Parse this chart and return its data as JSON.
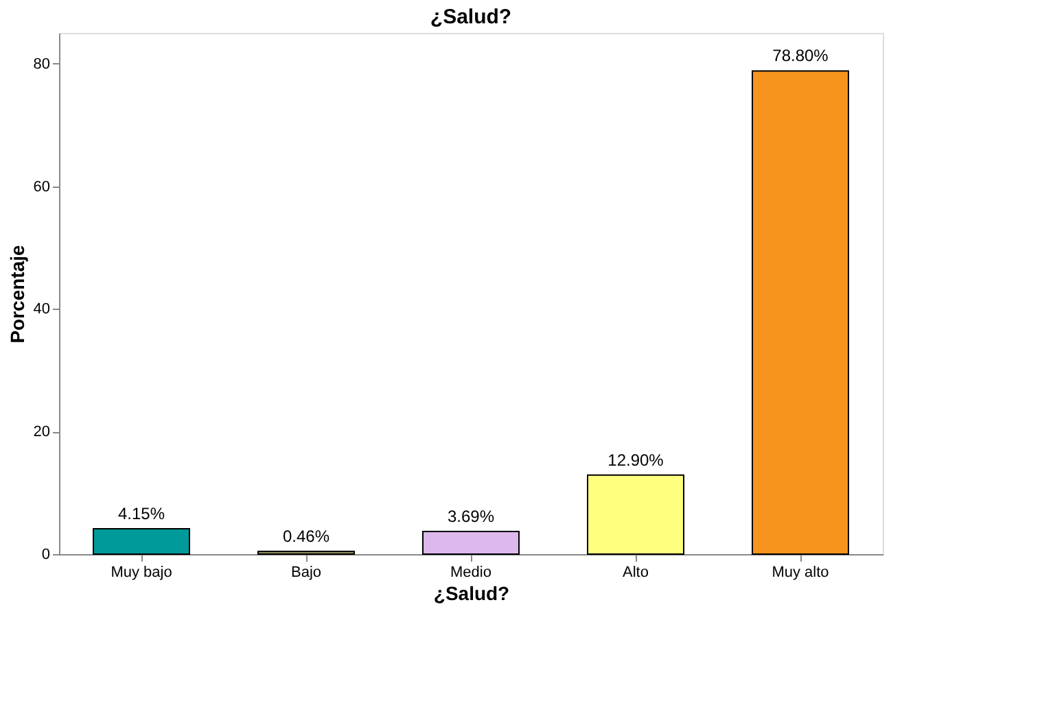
{
  "chart_data": {
    "type": "bar",
    "title": "¿Salud?",
    "xlabel": "¿Salud?",
    "ylabel": "Porcentaje",
    "categories": [
      "Muy bajo",
      "Bajo",
      "Medio",
      "Alto",
      "Muy alto"
    ],
    "values": [
      4.15,
      0.46,
      3.69,
      12.9,
      78.8
    ],
    "colors": [
      "#009a9a",
      "#8c8c5c",
      "#dcb8ec",
      "#ffff80",
      "#f7941d"
    ],
    "value_labels": [
      "4.15%",
      "0.46%",
      "3.69%",
      "12.90%",
      "78.80%"
    ],
    "ylim": [
      0,
      85
    ],
    "yticks": [
      0,
      20,
      40,
      60,
      80
    ],
    "grid": false,
    "legend": false
  }
}
